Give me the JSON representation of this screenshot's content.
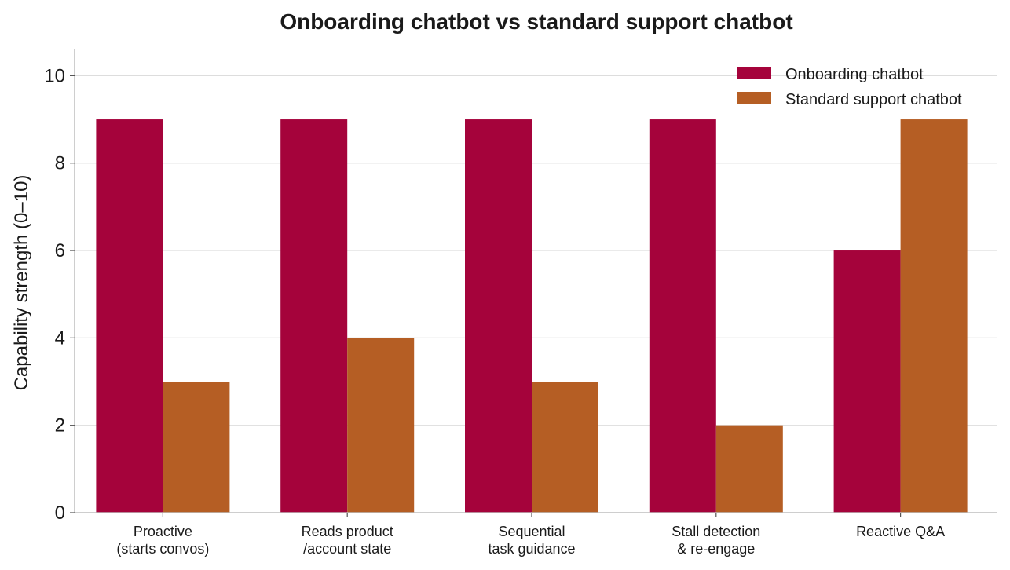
{
  "chart_data": {
    "type": "bar",
    "title": "Onboarding chatbot vs standard support chatbot",
    "ylabel": "Capability strength (0–10)",
    "xlabel": "",
    "ylim": [
      0,
      10.6
    ],
    "yticks": [
      "0",
      "2",
      "4",
      "6",
      "8",
      "10"
    ],
    "grid": true,
    "legend_position": "top-right",
    "categories": [
      [
        "Proactive",
        "(starts convos)"
      ],
      [
        "Reads product",
        "/account state"
      ],
      [
        "Sequential",
        "task guidance"
      ],
      [
        "Stall detection",
        "& re-engage"
      ],
      [
        "Reactive Q&A"
      ]
    ],
    "series": [
      {
        "name": "Onboarding chatbot",
        "color": "#a5033b",
        "values": [
          9,
          9,
          9,
          9,
          6
        ]
      },
      {
        "name": "Standard support chatbot",
        "color": "#b55e24",
        "values": [
          3,
          4,
          3,
          2,
          9
        ]
      }
    ]
  }
}
